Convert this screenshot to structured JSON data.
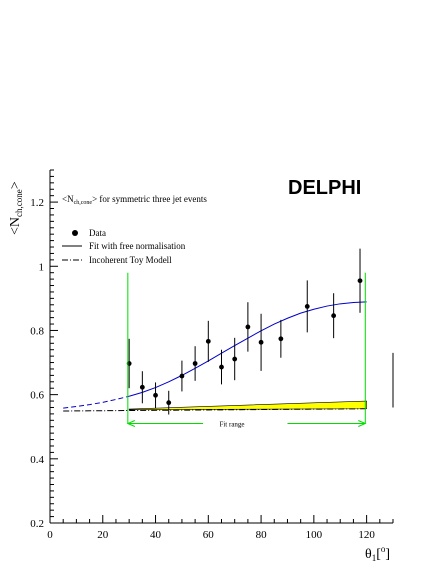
{
  "chart_data": {
    "type": "scatter",
    "brand": "DELPHI",
    "brand_color": "#ff00ff",
    "ylabel": "<N",
    "ylabel_sub": "ch,cone",
    "ylabel_close": ">",
    "xlabel": "θ",
    "xlabel_sub": "1",
    "xlabel_unit_open": "[",
    "xlabel_unit_sup": "o",
    "xlabel_unit_close": "]",
    "note_open": "<N",
    "note_sub": "ch,cone",
    "note_rest": "> for symmetric three jet events",
    "xlim": [
      0,
      130
    ],
    "ylim": [
      0.2,
      1.3
    ],
    "x_ticks": [
      "0",
      "20",
      "40",
      "60",
      "80",
      "100",
      "120"
    ],
    "y_ticks": [
      "0.2",
      "0.4",
      "0.6",
      "0.8",
      "1",
      "1.2"
    ],
    "legend": [
      {
        "label": "Data",
        "marker": "point"
      },
      {
        "label": "Fit with free normalisation",
        "marker": "solid"
      },
      {
        "label": "Incoherent Toy Modell",
        "marker": "dashdot"
      }
    ],
    "fit_range_label": "Fit range",
    "fit_range": [
      29.5,
      119.5
    ],
    "fit_color": "#0000cc",
    "fit_range_color": "#00dd00",
    "band_color": "#ffff00",
    "data": [
      {
        "x": 30,
        "y": 0.697,
        "err": 0.077
      },
      {
        "x": 35,
        "y": 0.623,
        "err": 0.05
      },
      {
        "x": 40,
        "y": 0.598,
        "err": 0.04
      },
      {
        "x": 45,
        "y": 0.575,
        "err": 0.037
      },
      {
        "x": 50,
        "y": 0.658,
        "err": 0.048
      },
      {
        "x": 55,
        "y": 0.697,
        "err": 0.054
      },
      {
        "x": 60,
        "y": 0.766,
        "err": 0.064
      },
      {
        "x": 65,
        "y": 0.686,
        "err": 0.054
      },
      {
        "x": 70,
        "y": 0.711,
        "err": 0.066
      },
      {
        "x": 75,
        "y": 0.811,
        "err": 0.077
      },
      {
        "x": 80,
        "y": 0.763,
        "err": 0.089
      },
      {
        "x": 87.5,
        "y": 0.774,
        "err": 0.059
      },
      {
        "x": 97.5,
        "y": 0.875,
        "err": 0.081
      },
      {
        "x": 107.5,
        "y": 0.846,
        "err": 0.07
      },
      {
        "x": 117.5,
        "y": 0.955,
        "err": 0.1
      }
    ],
    "fit_curve": [
      [
        5,
        0.558
      ],
      [
        10,
        0.563
      ],
      [
        15,
        0.569
      ],
      [
        20,
        0.576
      ],
      [
        25,
        0.585
      ],
      [
        30,
        0.595
      ],
      [
        35,
        0.607
      ],
      [
        40,
        0.622
      ],
      [
        45,
        0.64
      ],
      [
        50,
        0.66
      ],
      [
        55,
        0.682
      ],
      [
        60,
        0.705
      ],
      [
        65,
        0.729
      ],
      [
        70,
        0.753
      ],
      [
        75,
        0.776
      ],
      [
        80,
        0.799
      ],
      [
        85,
        0.82
      ],
      [
        90,
        0.838
      ],
      [
        95,
        0.854
      ],
      [
        100,
        0.866
      ],
      [
        105,
        0.876
      ],
      [
        110,
        0.883
      ],
      [
        115,
        0.887
      ],
      [
        120,
        0.889
      ]
    ],
    "toy_model": [
      [
        5,
        0.549
      ],
      [
        120,
        0.556
      ]
    ],
    "toy_band": {
      "x": [
        30,
        120
      ],
      "lower": [
        0.553,
        0.556
      ],
      "upper": [
        0.555,
        0.58
      ]
    }
  }
}
